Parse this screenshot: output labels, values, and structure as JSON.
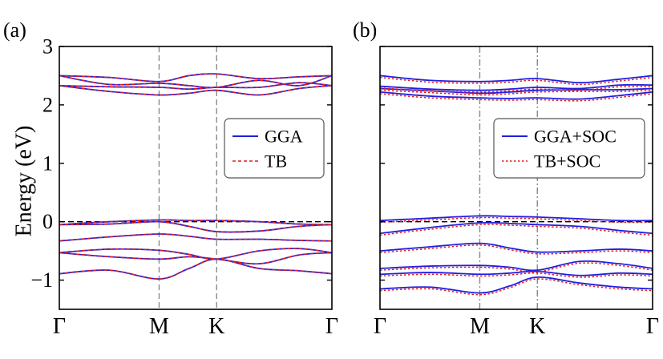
{
  "figure": {
    "ylabel": "Energy (eV)"
  },
  "chart_data": [
    {
      "panel": "(a)",
      "type": "line",
      "ylabel": "Energy (eV)",
      "ylim": [
        -1.5,
        3
      ],
      "yticks": [
        3,
        2,
        1,
        0,
        -1
      ],
      "ytick_labels": [
        "3",
        "2",
        "1",
        "0",
        "−1"
      ],
      "kpoints": [
        "Γ",
        "M",
        "K",
        "Γ"
      ],
      "kpoint_positions": [
        0,
        1,
        1.577,
        2.732
      ],
      "fermi_level": 0,
      "legend": {
        "position": "right",
        "entries": [
          "GGA",
          "TB"
        ]
      },
      "series": [
        {
          "name": "GGA",
          "color": "#1f1fe0",
          "style": "solid",
          "bands": [
            {
              "x": [
                0,
                0.5,
                1,
                1.3,
                1.577,
                2.0,
                2.4,
                2.732
              ],
              "y": [
                2.5,
                2.47,
                2.4,
                2.5,
                2.53,
                2.45,
                2.48,
                2.5
              ]
            },
            {
              "x": [
                0,
                0.5,
                1,
                1.3,
                1.577,
                2.0,
                2.4,
                2.732
              ],
              "y": [
                2.5,
                2.35,
                2.37,
                2.33,
                2.3,
                2.42,
                2.33,
                2.5
              ]
            },
            {
              "x": [
                0,
                0.5,
                1,
                1.3,
                1.577,
                2.0,
                2.4,
                2.732
              ],
              "y": [
                2.33,
                2.31,
                2.3,
                2.27,
                2.3,
                2.3,
                2.38,
                2.33
              ]
            },
            {
              "x": [
                0,
                0.5,
                1,
                1.3,
                1.577,
                2.0,
                2.4,
                2.732
              ],
              "y": [
                2.33,
                2.23,
                2.17,
                2.2,
                2.25,
                2.17,
                2.28,
                2.33
              ]
            },
            {
              "x": [
                0,
                0.5,
                1,
                1.3,
                1.577,
                2.0,
                2.4,
                2.732
              ],
              "y": [
                -0.05,
                0.0,
                0.03,
                0.02,
                0.02,
                0.0,
                -0.04,
                -0.05
              ]
            },
            {
              "x": [
                0,
                0.5,
                1,
                1.3,
                1.577,
                2.0,
                2.4,
                2.732
              ],
              "y": [
                -0.05,
                -0.04,
                0.0,
                -0.08,
                -0.17,
                -0.16,
                -0.08,
                -0.05
              ]
            },
            {
              "x": [
                0,
                0.5,
                1,
                1.3,
                1.577,
                2.0,
                2.4,
                2.732
              ],
              "y": [
                -0.33,
                -0.26,
                -0.21,
                -0.25,
                -0.3,
                -0.3,
                -0.32,
                -0.33
              ]
            },
            {
              "x": [
                0,
                0.5,
                1,
                1.3,
                1.577,
                2.0,
                2.4,
                2.732
              ],
              "y": [
                -0.53,
                -0.47,
                -0.49,
                -0.56,
                -0.64,
                -0.5,
                -0.46,
                -0.53
              ]
            },
            {
              "x": [
                0,
                0.5,
                1,
                1.3,
                1.577,
                2.0,
                2.4,
                2.732
              ],
              "y": [
                -0.53,
                -0.6,
                -0.64,
                -0.6,
                -0.64,
                -0.72,
                -0.57,
                -0.53
              ]
            },
            {
              "x": [
                0,
                0.5,
                1,
                1.3,
                1.577,
                2.0,
                2.4,
                2.732
              ],
              "y": [
                -0.89,
                -0.83,
                -0.98,
                -0.8,
                -0.64,
                -0.8,
                -0.84,
                -0.89
              ]
            }
          ]
        },
        {
          "name": "TB",
          "color": "#e01f1f",
          "style": "dashed",
          "same_bands_as": "GGA"
        }
      ]
    },
    {
      "panel": "(b)",
      "type": "line",
      "ylim": [
        -1.5,
        3
      ],
      "yticks": [
        3,
        2,
        1,
        0,
        -1
      ],
      "kpoints": [
        "Γ",
        "M",
        "K",
        "Γ"
      ],
      "kpoint_positions": [
        0,
        1,
        1.577,
        2.732
      ],
      "fermi_level": 0,
      "legend": {
        "position": "right",
        "entries": [
          "GGA+SOC",
          "TB+SOC"
        ]
      },
      "series": [
        {
          "name": "GGA+SOC",
          "color": "#1f1fe0",
          "style": "solid",
          "bands": [
            {
              "x": [
                0,
                0.5,
                1,
                1.3,
                1.577,
                2.0,
                2.4,
                2.732
              ],
              "y": [
                2.5,
                2.42,
                2.4,
                2.42,
                2.45,
                2.38,
                2.44,
                2.5
              ]
            },
            {
              "x": [
                0,
                0.5,
                1,
                1.3,
                1.577,
                2.0,
                2.4,
                2.732
              ],
              "y": [
                2.32,
                2.27,
                2.25,
                2.27,
                2.3,
                2.28,
                2.34,
                2.34
              ]
            },
            {
              "x": [
                0,
                0.5,
                1,
                1.3,
                1.577,
                2.0,
                2.4,
                2.732
              ],
              "y": [
                2.28,
                2.24,
                2.2,
                2.22,
                2.25,
                2.26,
                2.26,
                2.28
              ]
            },
            {
              "x": [
                0,
                0.5,
                1,
                1.3,
                1.577,
                2.0,
                2.4,
                2.732
              ],
              "y": [
                2.22,
                2.15,
                2.12,
                2.11,
                2.12,
                2.1,
                2.16,
                2.22
              ]
            },
            {
              "x": [
                0,
                0.5,
                1,
                1.3,
                1.577,
                2.0,
                2.4,
                2.732
              ],
              "y": [
                0.02,
                0.06,
                0.1,
                0.09,
                0.08,
                0.05,
                0.02,
                0.02
              ]
            },
            {
              "x": [
                0,
                0.5,
                1,
                1.3,
                1.577,
                2.0,
                2.4,
                2.732
              ],
              "y": [
                -0.2,
                -0.1,
                -0.02,
                -0.03,
                -0.05,
                -0.08,
                -0.15,
                -0.2
              ]
            },
            {
              "x": [
                0,
                0.5,
                1,
                1.3,
                1.577,
                2.0,
                2.4,
                2.732
              ],
              "y": [
                -0.5,
                -0.43,
                -0.37,
                -0.45,
                -0.52,
                -0.5,
                -0.47,
                -0.5
              ]
            },
            {
              "x": [
                0,
                0.5,
                1,
                1.3,
                1.577,
                2.0,
                2.4,
                2.732
              ],
              "y": [
                -0.8,
                -0.76,
                -0.75,
                -0.78,
                -0.83,
                -0.68,
                -0.72,
                -0.8
              ]
            },
            {
              "x": [
                0,
                0.5,
                1,
                1.3,
                1.577,
                2.0,
                2.4,
                2.732
              ],
              "y": [
                -0.9,
                -0.87,
                -0.9,
                -0.88,
                -0.85,
                -0.92,
                -0.88,
                -0.9
              ]
            },
            {
              "x": [
                0,
                0.5,
                1,
                1.3,
                1.577,
                2.0,
                2.4,
                2.732
              ],
              "y": [
                -1.15,
                -1.12,
                -1.22,
                -1.1,
                -0.95,
                -1.05,
                -1.12,
                -1.15
              ]
            }
          ]
        },
        {
          "name": "TB+SOC",
          "color": "#e01f1f",
          "style": "dotted",
          "same_bands_as": "GGA+SOC",
          "offset_eV": -0.03
        }
      ]
    }
  ]
}
